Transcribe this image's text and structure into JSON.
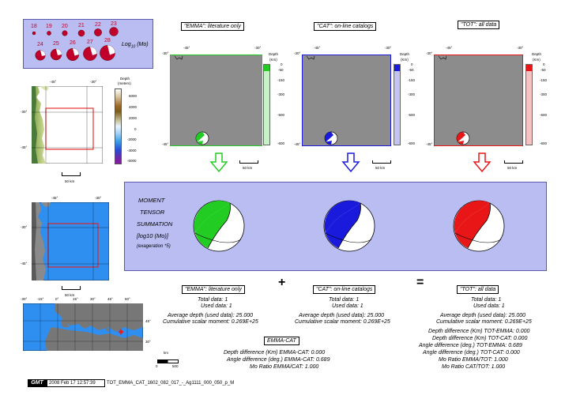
{
  "legend": {
    "magnitudes_top": [
      "18",
      "19",
      "20",
      "21",
      "22",
      "23"
    ],
    "magnitudes_bottom": [
      "24",
      "25",
      "26",
      "27",
      "28"
    ],
    "label_prefix": "Log",
    "label_sub": "10",
    "label_suffix": "(Mo)"
  },
  "topo_map": {
    "lon_labels": [
      "-45°",
      "-30°"
    ],
    "lat_labels": [
      "-30°",
      "-45°"
    ],
    "scalebar": "50 km",
    "colorbar_title": "Depth",
    "colorbar_unit": "(meters)",
    "colorbar_ticks": [
      "6000",
      "4000",
      "2000",
      "0",
      "-2000",
      "-4000",
      "-6000"
    ]
  },
  "blue_map": {
    "lon_labels": [
      "-45°",
      "-30°"
    ],
    "lat_labels": [
      "-30°",
      "-45°"
    ],
    "scalebar": "50 km"
  },
  "world_map": {
    "lon_labels": [
      "-30°",
      "-15°",
      "0°",
      "15°",
      "30°",
      "45°",
      "60°"
    ],
    "lat_labels": [
      "45°",
      "30°"
    ],
    "scale_unit": "km",
    "scale_ticks": [
      "0",
      "500"
    ]
  },
  "panels": [
    {
      "title": "\"EMMA\": literature only",
      "color": "#22cc22",
      "light": "#c7f2c7",
      "lon_labels": [
        "-45°",
        "-30°"
      ],
      "lat_labels": [
        "-45°",
        "-30°"
      ],
      "depth_title": "Depth",
      "depth_unit": "(Km)",
      "depth_ticks": [
        "0",
        "-50",
        "-150",
        "-300",
        "-500",
        "-600"
      ],
      "scalebar": "50 km"
    },
    {
      "title": "\"CAT\": on-line catalogs",
      "color": "#1a1adc",
      "light": "#c4c4f2",
      "lon_labels": [
        "-45°",
        "-30°"
      ],
      "lat_labels": [
        "-45°",
        "-30°"
      ],
      "depth_title": "Depth",
      "depth_unit": "(Km)",
      "depth_ticks": [
        "0",
        "-50",
        "-150",
        "-300",
        "-500",
        "-600"
      ],
      "scalebar": "50 km"
    },
    {
      "title": "\"TOT\": all data",
      "color": "#e81616",
      "light": "#f6c2c2",
      "lon_labels": [
        "-45°",
        "-30°"
      ],
      "lat_labels": [
        "-45°",
        "-30°"
      ],
      "depth_title": "Depth",
      "depth_unit": "(Km)",
      "depth_ticks": [
        "0",
        "-50",
        "-150",
        "-300",
        "-500",
        "-600"
      ],
      "scalebar": "50 km"
    }
  ],
  "summation": {
    "line1": "MOMENT",
    "line2": "TENSOR",
    "line3": "SUMMATION",
    "line4": "[log10 (Mo)]",
    "line5": "(exageration *5)"
  },
  "operators": {
    "plus": "+",
    "equals": "="
  },
  "emma_stats": {
    "title": "\"EMMA\": literature only",
    "total": "Total data:    1",
    "used": "Used data:    1",
    "avg_depth": "Average depth (used data):    25.000",
    "moment": "Cumulative scalar moment: 0.269E+25"
  },
  "cat_stats": {
    "title": "\"CAT\": on-line catalogs",
    "total": "Total data:    1",
    "used": "Used data:    1",
    "avg_depth": "Average depth (used data):    25.000",
    "moment": "Cumulative scalar moment: 0.269E+25"
  },
  "tot_stats": {
    "title": "\"TOT\": all data",
    "total": "Total data:    1",
    "used": "Used data:    1",
    "avg_depth": "Average depth (used data):    25.000",
    "moment": "Cumulative scalar moment: 0.269E+25",
    "d1": "Depth difference (Km) TOT-EMMA:    0.000",
    "d2": "Depth difference (Km) TOT-CAT:    0.000",
    "d3": "Angle difference (deg.) TOT-EMMA:    0.689",
    "d4": "Angle difference (deg.) TOT-CAT:    0.000",
    "d5": "Mo Ratio EMMA/TOT:    1.000",
    "d6": "Mo Ratio CAT/TOT:    1.000"
  },
  "emma_cat": {
    "title": "EMMA-CAT",
    "d1": "Depth difference (Km) EMMA-CAT:    0.000",
    "d2": "Angle difference (deg.) EMMA-CAT:    0.689",
    "d3": "Mo Ratio EMMA/CAT:    1.000"
  },
  "footer": {
    "logo": "GMT",
    "timestamp": "2008 Feb 17 12:57:39",
    "filename": "TOT_EMMA_CAT_1602_082_017_-_Ag1111_000_050_p_M"
  }
}
